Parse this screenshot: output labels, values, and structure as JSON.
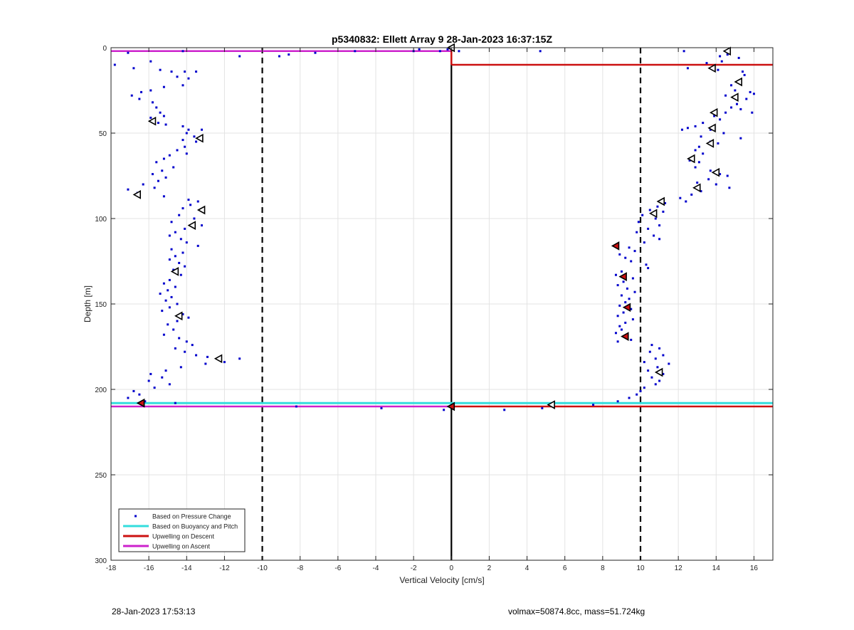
{
  "chart_data": {
    "type": "scatter",
    "title": "p5340832: Ellett Array 9 28-Jan-2023 16:37:15Z",
    "xlabel": "Vertical Velocity [cm/s]",
    "ylabel": "Depth [m]",
    "xlim": [
      -18,
      17
    ],
    "ylim": [
      0,
      300
    ],
    "y_reversed": true,
    "grid": true,
    "legend_position": "bottom-left",
    "xticks": [
      -18,
      -16,
      -14,
      -12,
      -10,
      -8,
      -6,
      -4,
      -2,
      0,
      2,
      4,
      6,
      8,
      10,
      12,
      14,
      16
    ],
    "yticks": [
      0,
      50,
      100,
      150,
      200,
      250,
      300
    ],
    "colors": {
      "pressure": "#0000cc",
      "buoyancy": "#33dddd",
      "descent": "#cc1111",
      "ascent": "#cc22cc",
      "reference": "#000000"
    },
    "reference_lines": {
      "zero_velocity": 0,
      "target_velocity_neg": -10,
      "target_velocity_pos": 10
    },
    "series": [
      {
        "name": "Based on Pressure Change",
        "marker": "point",
        "descent_points": [
          [
            4.7,
            2
          ],
          [
            12.3,
            2
          ],
          [
            14.2,
            5
          ],
          [
            14.6,
            4
          ],
          [
            15.2,
            6
          ],
          [
            13.5,
            9
          ],
          [
            14.3,
            8
          ],
          [
            12.5,
            12
          ],
          [
            14.1,
            13
          ],
          [
            15.4,
            14
          ],
          [
            15.5,
            16
          ],
          [
            15.2,
            20
          ],
          [
            14.8,
            22
          ],
          [
            15.0,
            25
          ],
          [
            15.8,
            26
          ],
          [
            16.0,
            27
          ],
          [
            14.5,
            28
          ],
          [
            15.6,
            30
          ],
          [
            15.1,
            33
          ],
          [
            14.8,
            35
          ],
          [
            15.3,
            36
          ],
          [
            14.5,
            38
          ],
          [
            15.9,
            38
          ],
          [
            13.9,
            40
          ],
          [
            14.2,
            42
          ],
          [
            13.3,
            44
          ],
          [
            12.9,
            46
          ],
          [
            12.5,
            47
          ],
          [
            13.7,
            48
          ],
          [
            12.2,
            48
          ],
          [
            14.4,
            50
          ],
          [
            13.2,
            52
          ],
          [
            15.3,
            53
          ],
          [
            13.7,
            55
          ],
          [
            14.1,
            56
          ],
          [
            13.1,
            58
          ],
          [
            12.9,
            60
          ],
          [
            13.3,
            62
          ],
          [
            12.8,
            64
          ],
          [
            12.6,
            66
          ],
          [
            13.1,
            67
          ],
          [
            12.9,
            70
          ],
          [
            13.7,
            72
          ],
          [
            14.2,
            74
          ],
          [
            14.6,
            75
          ],
          [
            13.6,
            77
          ],
          [
            13.0,
            79
          ],
          [
            14.0,
            80
          ],
          [
            14.7,
            82
          ],
          [
            13.2,
            84
          ],
          [
            12.7,
            86
          ],
          [
            12.1,
            88
          ],
          [
            12.4,
            90
          ],
          [
            11.3,
            91
          ],
          [
            10.9,
            93
          ],
          [
            10.5,
            95
          ],
          [
            11.2,
            96
          ],
          [
            10.1,
            98
          ],
          [
            10.8,
            100
          ],
          [
            9.9,
            102
          ],
          [
            11.0,
            104
          ],
          [
            10.4,
            106
          ],
          [
            9.8,
            108
          ],
          [
            10.7,
            110
          ],
          [
            11.0,
            112
          ],
          [
            10.2,
            114
          ],
          [
            8.8,
            115
          ],
          [
            9.4,
            117
          ],
          [
            9.7,
            119
          ],
          [
            8.9,
            121
          ],
          [
            9.2,
            123
          ],
          [
            9.5,
            125
          ],
          [
            10.3,
            127
          ],
          [
            10.4,
            129
          ],
          [
            9.0,
            131
          ],
          [
            8.7,
            133
          ],
          [
            9.6,
            135
          ],
          [
            9.1,
            137
          ],
          [
            8.8,
            139
          ],
          [
            9.3,
            141
          ],
          [
            9.7,
            143
          ],
          [
            9.0,
            145
          ],
          [
            9.4,
            147
          ],
          [
            9.2,
            149
          ],
          [
            8.9,
            151
          ],
          [
            9.5,
            153
          ],
          [
            9.1,
            155
          ],
          [
            8.8,
            157
          ],
          [
            9.6,
            159
          ],
          [
            9.2,
            161
          ],
          [
            8.9,
            163
          ],
          [
            9.0,
            165
          ],
          [
            8.7,
            167
          ],
          [
            9.2,
            169
          ],
          [
            9.5,
            171
          ],
          [
            8.8,
            172
          ],
          [
            10.6,
            174
          ],
          [
            11.0,
            176
          ],
          [
            10.5,
            178
          ],
          [
            11.2,
            180
          ],
          [
            10.8,
            182
          ],
          [
            10.2,
            184
          ],
          [
            11.5,
            185
          ],
          [
            10.9,
            187
          ],
          [
            10.4,
            189
          ],
          [
            11.2,
            191
          ],
          [
            10.6,
            193
          ],
          [
            11.0,
            195
          ],
          [
            10.8,
            197
          ],
          [
            10.2,
            199
          ],
          [
            10.0,
            201
          ],
          [
            9.8,
            203
          ],
          [
            9.4,
            205
          ],
          [
            8.8,
            207
          ],
          [
            7.5,
            209
          ],
          [
            5.3,
            209
          ],
          [
            4.8,
            211
          ],
          [
            2.8,
            212
          ]
        ],
        "ascent_points": [
          [
            -17.8,
            10
          ],
          [
            -16.8,
            12
          ],
          [
            -15.9,
            8
          ],
          [
            -15.4,
            13
          ],
          [
            -14.8,
            14
          ],
          [
            -14.1,
            14
          ],
          [
            -13.5,
            14
          ],
          [
            -14.5,
            17
          ],
          [
            -13.9,
            18
          ],
          [
            -15.2,
            23
          ],
          [
            -14.2,
            22
          ],
          [
            -16.9,
            28
          ],
          [
            -16.4,
            26
          ],
          [
            -15.9,
            25
          ],
          [
            -16.5,
            30
          ],
          [
            -15.8,
            32
          ],
          [
            -15.6,
            35
          ],
          [
            -15.4,
            38
          ],
          [
            -15.2,
            40
          ],
          [
            -15.9,
            41
          ],
          [
            -15.5,
            44
          ],
          [
            -15.1,
            45
          ],
          [
            -14.2,
            46
          ],
          [
            -13.9,
            48
          ],
          [
            -13.2,
            48
          ],
          [
            -14.0,
            50
          ],
          [
            -13.6,
            52
          ],
          [
            -14.2,
            54
          ],
          [
            -13.5,
            55
          ],
          [
            -14.1,
            58
          ],
          [
            -14.5,
            60
          ],
          [
            -14.0,
            62
          ],
          [
            -14.9,
            63
          ],
          [
            -15.2,
            65
          ],
          [
            -15.6,
            67
          ],
          [
            -14.7,
            70
          ],
          [
            -15.3,
            72
          ],
          [
            -15.8,
            74
          ],
          [
            -15.1,
            76
          ],
          [
            -15.5,
            78
          ],
          [
            -16.3,
            80
          ],
          [
            -15.7,
            82
          ],
          [
            -17.1,
            83
          ],
          [
            -16.6,
            85
          ],
          [
            -15.2,
            87
          ],
          [
            -13.9,
            89
          ],
          [
            -13.4,
            90
          ],
          [
            -13.8,
            92
          ],
          [
            -14.2,
            94
          ],
          [
            -13.1,
            96
          ],
          [
            -14.4,
            98
          ],
          [
            -13.6,
            100
          ],
          [
            -14.8,
            102
          ],
          [
            -13.2,
            104
          ],
          [
            -14.1,
            106
          ],
          [
            -14.6,
            108
          ],
          [
            -14.9,
            110
          ],
          [
            -14.3,
            112
          ],
          [
            -14.0,
            114
          ],
          [
            -13.4,
            116
          ],
          [
            -14.8,
            118
          ],
          [
            -14.2,
            120
          ],
          [
            -14.6,
            122
          ],
          [
            -14.9,
            124
          ],
          [
            -14.4,
            126
          ],
          [
            -14.1,
            128
          ],
          [
            -14.7,
            130
          ],
          [
            -14.3,
            133
          ],
          [
            -14.9,
            136
          ],
          [
            -15.2,
            138
          ],
          [
            -14.6,
            140
          ],
          [
            -15.0,
            142
          ],
          [
            -15.4,
            144
          ],
          [
            -14.8,
            146
          ],
          [
            -15.1,
            148
          ],
          [
            -14.5,
            150
          ],
          [
            -14.9,
            152
          ],
          [
            -15.3,
            154
          ],
          [
            -14.2,
            156
          ],
          [
            -13.9,
            158
          ],
          [
            -14.5,
            160
          ],
          [
            -15.0,
            162
          ],
          [
            -14.7,
            165
          ],
          [
            -15.2,
            168
          ],
          [
            -14.4,
            170
          ],
          [
            -14.0,
            172
          ],
          [
            -13.7,
            174
          ],
          [
            -14.6,
            176
          ],
          [
            -14.1,
            178
          ],
          [
            -13.5,
            180
          ],
          [
            -12.9,
            181
          ],
          [
            -12.3,
            182
          ],
          [
            -11.2,
            182
          ],
          [
            -12.0,
            184
          ],
          [
            -13.0,
            185
          ],
          [
            -14.3,
            187
          ],
          [
            -15.1,
            189
          ],
          [
            -15.9,
            191
          ],
          [
            -15.3,
            193
          ],
          [
            -16.0,
            195
          ],
          [
            -14.9,
            197
          ],
          [
            -15.7,
            199
          ],
          [
            -16.8,
            201
          ],
          [
            -16.5,
            203
          ],
          [
            -17.1,
            205
          ],
          [
            -16.2,
            207
          ],
          [
            -14.6,
            208
          ],
          [
            -8.2,
            210
          ],
          [
            -3.7,
            211
          ],
          [
            -0.4,
            212
          ],
          [
            -17.1,
            3
          ],
          [
            -14.2,
            2
          ],
          [
            -11.2,
            5
          ],
          [
            -9.1,
            5
          ],
          [
            -8.6,
            4
          ],
          [
            -7.2,
            3
          ],
          [
            -5.1,
            2
          ],
          [
            -2.0,
            2
          ],
          [
            -1.7,
            1
          ],
          [
            -0.6,
            2
          ],
          [
            -0.2,
            1
          ],
          [
            0.4,
            2
          ]
        ]
      },
      {
        "name": "Based on Buoyancy and Pitch",
        "line_depths": [
          208
        ],
        "triangles_descent": [
          [
            14.6,
            2
          ],
          [
            13.8,
            12
          ],
          [
            15.2,
            20
          ],
          [
            15.0,
            29
          ],
          [
            13.9,
            38
          ],
          [
            13.8,
            47
          ],
          [
            13.7,
            56
          ],
          [
            12.7,
            65
          ],
          [
            14.0,
            73
          ],
          [
            13.0,
            82
          ],
          [
            11.1,
            90
          ],
          [
            10.7,
            97
          ],
          [
            11.0,
            190
          ],
          [
            5.3,
            209
          ],
          [
            0.0,
            0
          ]
        ],
        "triangles_ascent": [
          [
            -15.8,
            43
          ],
          [
            -13.3,
            53
          ],
          [
            -16.6,
            86
          ],
          [
            -13.2,
            95
          ],
          [
            -13.7,
            104
          ],
          [
            -14.6,
            131
          ],
          [
            -14.4,
            157
          ],
          [
            -12.3,
            182
          ],
          [
            -16.4,
            208
          ]
        ]
      },
      {
        "name": "Upwelling on Descent",
        "line_depths": [
          10,
          210
        ],
        "filled_markers": [
          [
            8.7,
            116
          ],
          [
            9.1,
            134
          ],
          [
            9.3,
            152
          ],
          [
            9.2,
            169
          ],
          [
            0.0,
            210
          ],
          [
            -16.4,
            208
          ]
        ]
      },
      {
        "name": "Upwelling on Ascent",
        "line_depths": [
          2,
          210
        ]
      }
    ]
  },
  "footer": {
    "timestamp": "28-Jan-2023 17:53:13",
    "volume_mass": "volmax=50874.8cc, mass=51.724kg"
  }
}
